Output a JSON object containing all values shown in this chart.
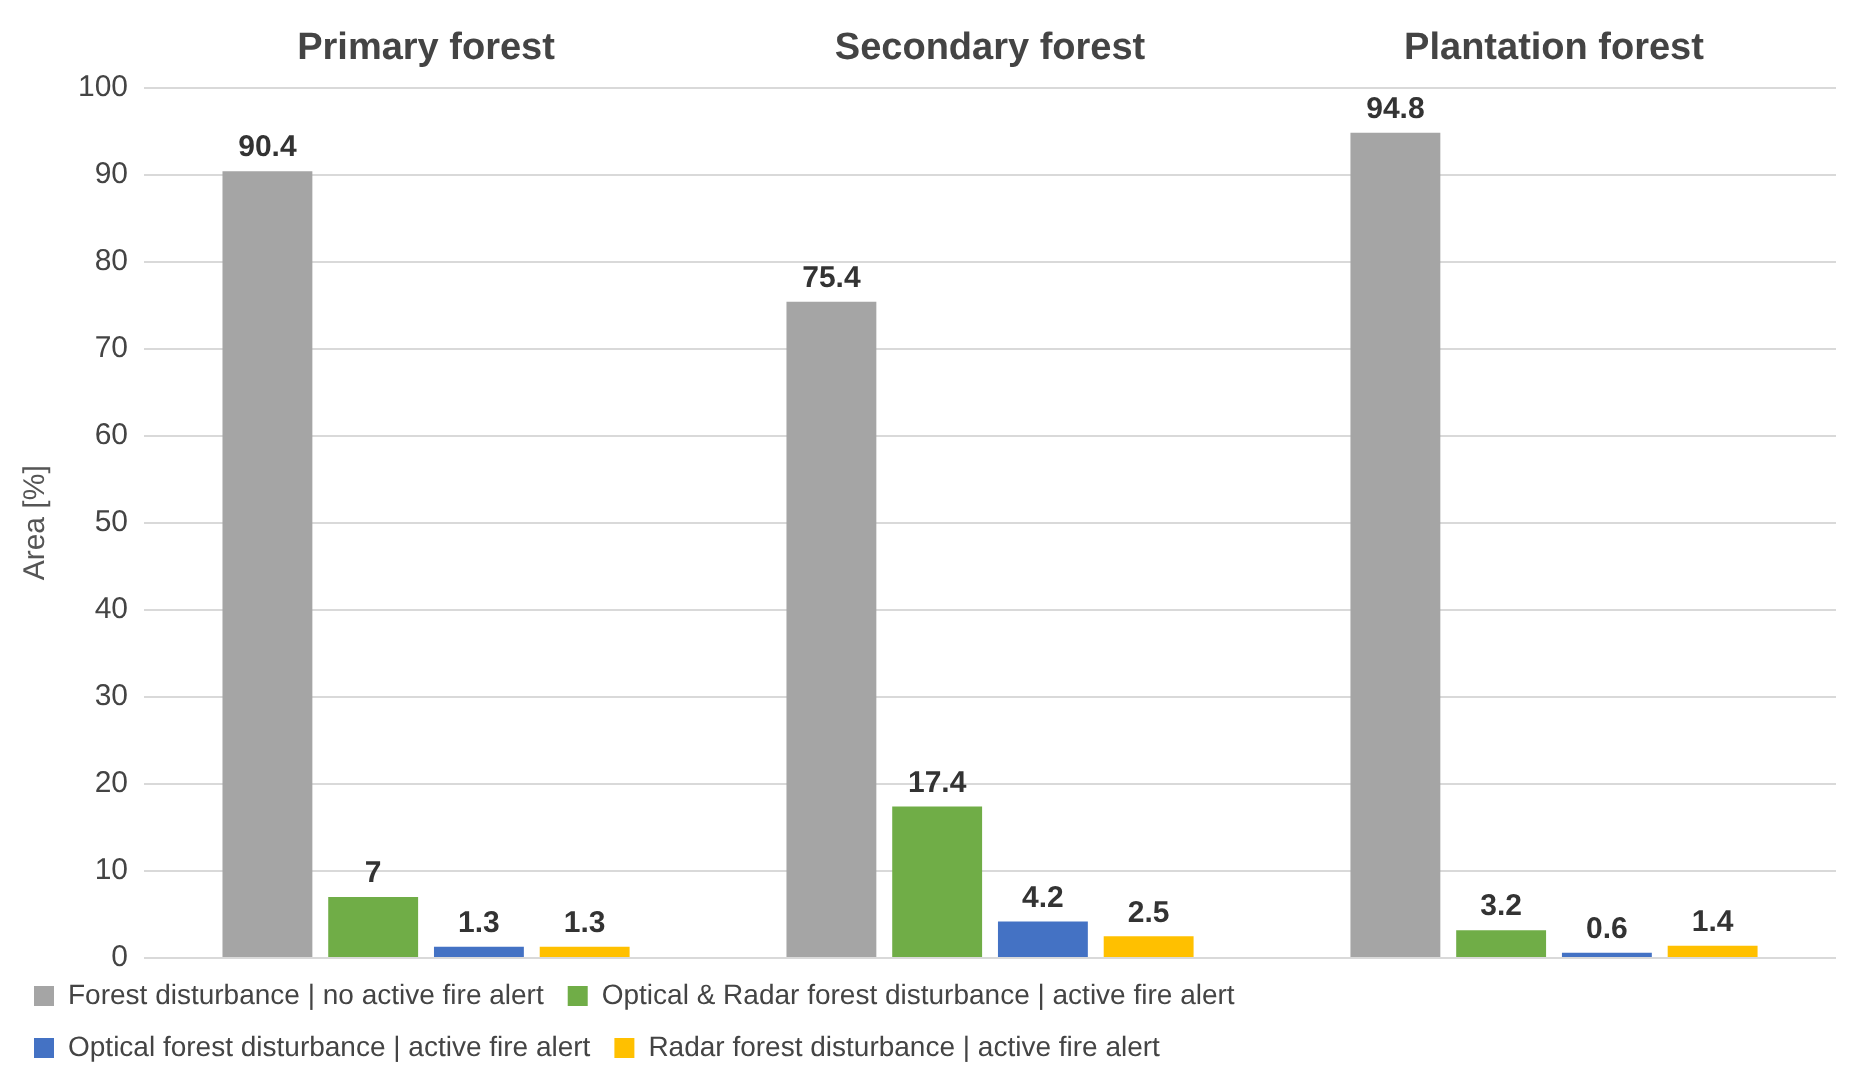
{
  "chart_data": {
    "type": "bar",
    "ylabel": "Area [%]",
    "categories": [
      "Primary forest",
      "Secondary forest",
      "Plantation forest"
    ],
    "series": [
      {
        "name": "Forest disturbance | no active fire alert",
        "color": "#a5a5a5",
        "values": [
          90.4,
          75.4,
          94.8
        ]
      },
      {
        "name": "Optical & Radar forest disturbance | active fire alert",
        "color": "#70ad47",
        "values": [
          7,
          17.4,
          3.2
        ]
      },
      {
        "name": "Optical forest disturbance | active fire alert",
        "color": "#4472c4",
        "values": [
          1.3,
          4.2,
          0.6
        ]
      },
      {
        "name": "Radar forest disturbance | active fire alert",
        "color": "#ffc000",
        "values": [
          1.3,
          2.5,
          1.4
        ]
      }
    ],
    "ylim": [
      0,
      100
    ],
    "yticks": [
      0,
      10,
      20,
      30,
      40,
      50,
      60,
      70,
      80,
      90,
      100
    ],
    "grid": "y",
    "legend": "bottom",
    "data_labels": true
  }
}
